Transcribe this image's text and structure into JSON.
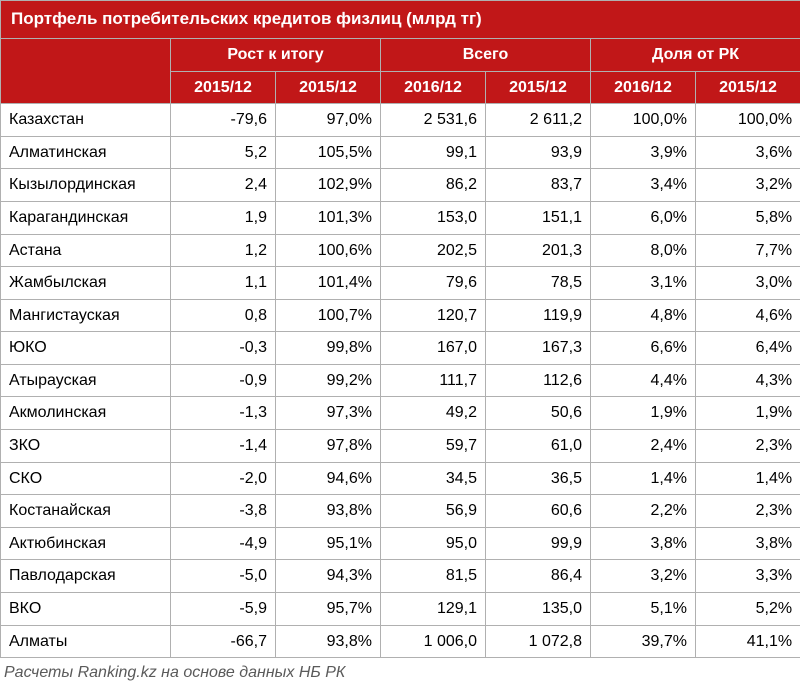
{
  "title": "Портфель потребительских кредитов физлиц (млрд тг)",
  "groupHeaders": [
    "Рост к итогу",
    "Всего",
    "Доля от РК"
  ],
  "subHeaders": [
    "2015/12",
    "2015/12",
    "2016/12",
    "2015/12",
    "2016/12",
    "2015/12"
  ],
  "columns": [
    "region",
    "growth_abs",
    "growth_pct",
    "total_2016",
    "total_2015",
    "share_2016",
    "share_2015"
  ],
  "rows": [
    {
      "region": "Казахстан",
      "growth_abs": "-79,6",
      "growth_pct": "97,0%",
      "total_2016": "2 531,6",
      "total_2015": "2 611,2",
      "share_2016": "100,0%",
      "share_2015": "100,0%"
    },
    {
      "region": "Алматинская",
      "growth_abs": "5,2",
      "growth_pct": "105,5%",
      "total_2016": "99,1",
      "total_2015": "93,9",
      "share_2016": "3,9%",
      "share_2015": "3,6%"
    },
    {
      "region": "Кызылординская",
      "growth_abs": "2,4",
      "growth_pct": "102,9%",
      "total_2016": "86,2",
      "total_2015": "83,7",
      "share_2016": "3,4%",
      "share_2015": "3,2%"
    },
    {
      "region": "Карагандинская",
      "growth_abs": "1,9",
      "growth_pct": "101,3%",
      "total_2016": "153,0",
      "total_2015": "151,1",
      "share_2016": "6,0%",
      "share_2015": "5,8%"
    },
    {
      "region": "Астана",
      "growth_abs": "1,2",
      "growth_pct": "100,6%",
      "total_2016": "202,5",
      "total_2015": "201,3",
      "share_2016": "8,0%",
      "share_2015": "7,7%"
    },
    {
      "region": "Жамбылская",
      "growth_abs": "1,1",
      "growth_pct": "101,4%",
      "total_2016": "79,6",
      "total_2015": "78,5",
      "share_2016": "3,1%",
      "share_2015": "3,0%"
    },
    {
      "region": "Мангистауская",
      "growth_abs": "0,8",
      "growth_pct": "100,7%",
      "total_2016": "120,7",
      "total_2015": "119,9",
      "share_2016": "4,8%",
      "share_2015": "4,6%"
    },
    {
      "region": "ЮКО",
      "growth_abs": "-0,3",
      "growth_pct": "99,8%",
      "total_2016": "167,0",
      "total_2015": "167,3",
      "share_2016": "6,6%",
      "share_2015": "6,4%"
    },
    {
      "region": "Атырауская",
      "growth_abs": "-0,9",
      "growth_pct": "99,2%",
      "total_2016": "111,7",
      "total_2015": "112,6",
      "share_2016": "4,4%",
      "share_2015": "4,3%"
    },
    {
      "region": "Акмолинская",
      "growth_abs": "-1,3",
      "growth_pct": "97,3%",
      "total_2016": "49,2",
      "total_2015": "50,6",
      "share_2016": "1,9%",
      "share_2015": "1,9%"
    },
    {
      "region": "ЗКО",
      "growth_abs": "-1,4",
      "growth_pct": "97,8%",
      "total_2016": "59,7",
      "total_2015": "61,0",
      "share_2016": "2,4%",
      "share_2015": "2,3%"
    },
    {
      "region": "СКО",
      "growth_abs": "-2,0",
      "growth_pct": "94,6%",
      "total_2016": "34,5",
      "total_2015": "36,5",
      "share_2016": "1,4%",
      "share_2015": "1,4%"
    },
    {
      "region": "Костанайская",
      "growth_abs": "-3,8",
      "growth_pct": "93,8%",
      "total_2016": "56,9",
      "total_2015": "60,6",
      "share_2016": "2,2%",
      "share_2015": "2,3%"
    },
    {
      "region": "Актюбинская",
      "growth_abs": "-4,9",
      "growth_pct": "95,1%",
      "total_2016": "95,0",
      "total_2015": "99,9",
      "share_2016": "3,8%",
      "share_2015": "3,8%"
    },
    {
      "region": "Павлодарская",
      "growth_abs": "-5,0",
      "growth_pct": "94,3%",
      "total_2016": "81,5",
      "total_2015": "86,4",
      "share_2016": "3,2%",
      "share_2015": "3,3%"
    },
    {
      "region": "ВКО",
      "growth_abs": "-5,9",
      "growth_pct": "95,7%",
      "total_2016": "129,1",
      "total_2015": "135,0",
      "share_2016": "5,1%",
      "share_2015": "5,2%"
    },
    {
      "region": "Алматы",
      "growth_abs": "-66,7",
      "growth_pct": "93,8%",
      "total_2016": "1 006,0",
      "total_2015": "1 072,8",
      "share_2016": "39,7%",
      "share_2015": "41,1%"
    }
  ],
  "footnote": "Расчеты Ranking.kz на основе данных НБ РК",
  "colors": {
    "header_bg": "#c11718",
    "header_fg": "#ffffff",
    "cell_bg": "#ffffff",
    "cell_fg": "#000000",
    "border": "#b0b0b0",
    "footnote_fg": "#5a5a5a"
  }
}
